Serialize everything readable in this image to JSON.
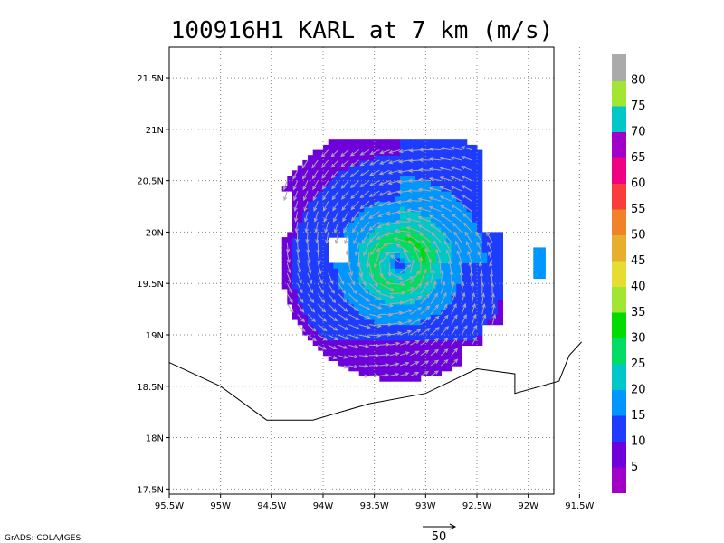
{
  "chart_data": {
    "type": "heatmap",
    "title": "100916H1 KARL at 7 km (m/s)",
    "credit": "GrADS: COLA/IGES",
    "x_ticks": [
      "95.5W",
      "95W",
      "94.5W",
      "94W",
      "93.5W",
      "93W",
      "92.5W",
      "92W",
      "91.5W"
    ],
    "y_ticks": [
      "17.5N",
      "18N",
      "18.5N",
      "19N",
      "19.5N",
      "20N",
      "20.5N",
      "21N",
      "21.5N"
    ],
    "xlim": [
      -95.5,
      -91.75
    ],
    "ylim": [
      17.45,
      21.8
    ],
    "grid": true,
    "center": {
      "lon": -93.28,
      "lat": 19.68
    },
    "vector_scale": {
      "label": "50",
      "value": 50
    },
    "colorbar": {
      "labels": [
        "5",
        "10",
        "15",
        "20",
        "25",
        "30",
        "35",
        "40",
        "45",
        "50",
        "55",
        "60",
        "65",
        "70",
        "75",
        "80"
      ],
      "colors": [
        "#a000c8",
        "#6e00dc",
        "#1e3cff",
        "#0096ff",
        "#00c8c8",
        "#00dc64",
        "#00dc00",
        "#a0e632",
        "#e6dc32",
        "#e6af2d",
        "#f08228",
        "#fa3c3c",
        "#f00082",
        "#a000c8",
        "#00c8c8",
        "#a0e632",
        "#aaaaaa"
      ]
    },
    "coastline": [
      [
        -95.5,
        18.73
      ],
      [
        -95.0,
        18.5
      ],
      [
        -94.55,
        18.17
      ],
      [
        -94.1,
        18.17
      ],
      [
        -93.55,
        18.33
      ],
      [
        -93.0,
        18.43
      ],
      [
        -92.5,
        18.67
      ],
      [
        -92.13,
        18.62
      ],
      [
        -92.13,
        18.43
      ],
      [
        -91.7,
        18.55
      ],
      [
        -91.6,
        18.8
      ],
      [
        -91.48,
        18.93
      ]
    ],
    "wind_field": {
      "min_speed": 8,
      "max_speed": 35,
      "radius_max_wind_deg": 0.25
    }
  }
}
